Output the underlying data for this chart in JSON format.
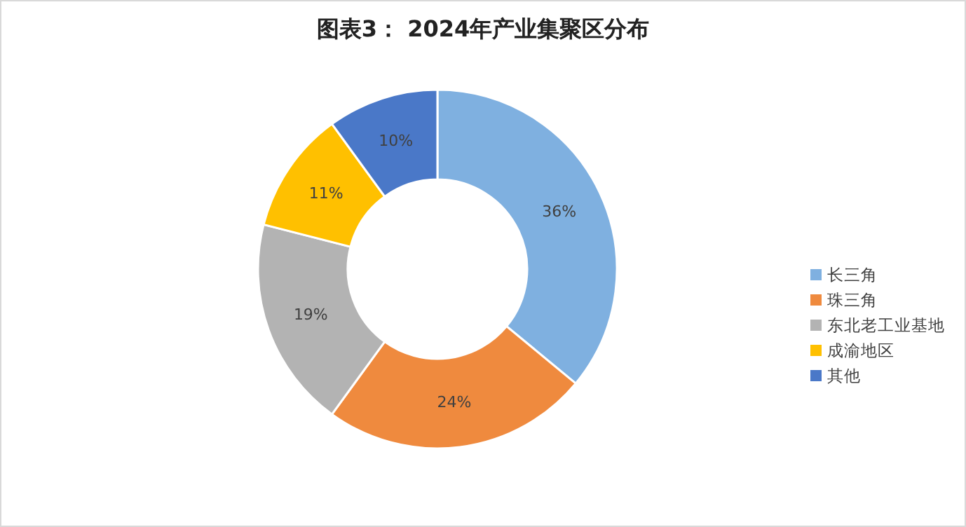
{
  "chart_data": {
    "type": "donut",
    "title": "图表3： 2024年产业集聚区分布",
    "categories": [
      "长三角",
      "珠三角",
      "东北老工业基地",
      "成渝地区",
      "其他"
    ],
    "values": [
      36,
      24,
      19,
      11,
      10
    ],
    "colors": [
      "#7fb0e0",
      "#ef8a3e",
      "#b3b3b3",
      "#ffc000",
      "#4a78c8"
    ],
    "value_labels": [
      "36%",
      "24%",
      "19%",
      "11%",
      "10%"
    ],
    "legend": "right"
  }
}
